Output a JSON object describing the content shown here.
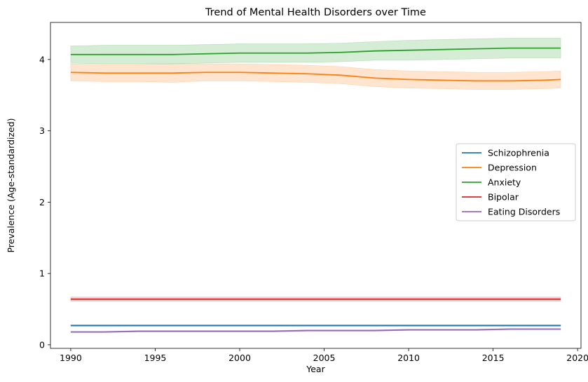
{
  "chart_data": {
    "type": "line",
    "title": "Trend of Mental Health Disorders over Time",
    "xlabel": "Year",
    "ylabel": "Prevalence (Age-standardized)",
    "xlim": [
      1988.8,
      2020.2
    ],
    "ylim": [
      -0.05,
      4.52
    ],
    "xticks": [
      1990,
      1995,
      2000,
      2005,
      2010,
      2015,
      2020
    ],
    "yticks": [
      0,
      1,
      2,
      3,
      4
    ],
    "grid": false,
    "legend_position": "center-right",
    "x": [
      1990,
      1992,
      1994,
      1996,
      1998,
      2000,
      2002,
      2004,
      2006,
      2008,
      2010,
      2012,
      2014,
      2016,
      2018,
      2019
    ],
    "series": [
      {
        "name": "Schizophrenia",
        "color": "#1f77b4",
        "values": [
          0.27,
          0.27,
          0.27,
          0.27,
          0.27,
          0.27,
          0.27,
          0.27,
          0.27,
          0.27,
          0.27,
          0.27,
          0.27,
          0.27,
          0.27,
          0.27
        ],
        "band": [
          0.01,
          0.01,
          0.01,
          0.01,
          0.01,
          0.01,
          0.01,
          0.01,
          0.01,
          0.01,
          0.01,
          0.01,
          0.01,
          0.01,
          0.01,
          0.01
        ]
      },
      {
        "name": "Depression",
        "color": "#ff7f0e",
        "values": [
          3.82,
          3.81,
          3.81,
          3.81,
          3.82,
          3.82,
          3.81,
          3.8,
          3.78,
          3.74,
          3.72,
          3.71,
          3.7,
          3.7,
          3.71,
          3.72
        ],
        "band": [
          0.12,
          0.12,
          0.12,
          0.13,
          0.12,
          0.12,
          0.12,
          0.12,
          0.12,
          0.12,
          0.12,
          0.12,
          0.12,
          0.12,
          0.12,
          0.12
        ]
      },
      {
        "name": "Anxiety",
        "color": "#2ca02c",
        "values": [
          4.07,
          4.07,
          4.07,
          4.07,
          4.08,
          4.09,
          4.09,
          4.09,
          4.1,
          4.12,
          4.13,
          4.14,
          4.15,
          4.16,
          4.16,
          4.16
        ],
        "band": [
          0.12,
          0.13,
          0.13,
          0.13,
          0.13,
          0.13,
          0.13,
          0.13,
          0.13,
          0.13,
          0.14,
          0.14,
          0.14,
          0.14,
          0.14,
          0.14
        ]
      },
      {
        "name": "Bipolar",
        "color": "#d62728",
        "values": [
          0.64,
          0.64,
          0.64,
          0.64,
          0.64,
          0.64,
          0.64,
          0.64,
          0.64,
          0.64,
          0.64,
          0.64,
          0.64,
          0.64,
          0.64,
          0.64
        ],
        "band": [
          0.03,
          0.03,
          0.03,
          0.03,
          0.03,
          0.03,
          0.03,
          0.03,
          0.03,
          0.03,
          0.03,
          0.03,
          0.03,
          0.03,
          0.03,
          0.03
        ]
      },
      {
        "name": "Eating Disorders",
        "color": "#9467bd",
        "values": [
          0.18,
          0.18,
          0.19,
          0.19,
          0.19,
          0.19,
          0.19,
          0.2,
          0.2,
          0.2,
          0.21,
          0.21,
          0.21,
          0.22,
          0.22,
          0.22
        ],
        "band": [
          0.01,
          0.01,
          0.01,
          0.01,
          0.01,
          0.01,
          0.01,
          0.01,
          0.01,
          0.01,
          0.01,
          0.01,
          0.01,
          0.01,
          0.01,
          0.01
        ]
      }
    ]
  }
}
